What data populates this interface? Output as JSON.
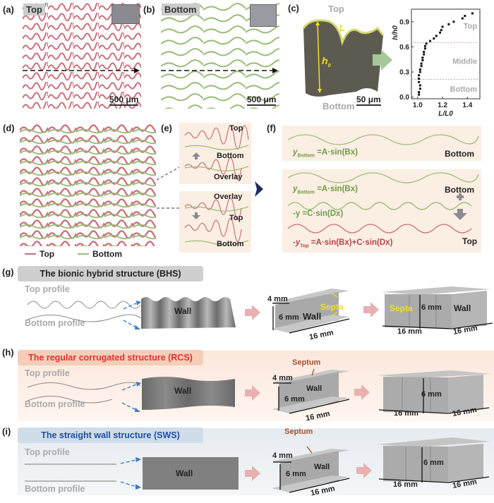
{
  "panels": {
    "a": {
      "label": "(a)",
      "tag": "Top",
      "scale": "500 μm"
    },
    "b": {
      "label": "(b)",
      "tag": "Bottom",
      "scale": "500 μm"
    },
    "c": {
      "label": "(c)",
      "top": "Top",
      "bottom": "Bottom",
      "L": "L",
      "h0": "h",
      "h0_sub": "0",
      "scale": "50 μm"
    },
    "d": {
      "label": "(d)",
      "legend": [
        {
          "name": "Top",
          "color": "#c9707a"
        },
        {
          "name": "Bottom",
          "color": "#9bbd7a"
        }
      ]
    },
    "e": {
      "label": "(e)",
      "box1": [
        "Top",
        "Bottom",
        "Overlay"
      ],
      "box2": [
        "Overlay",
        "Top",
        "Bottom"
      ]
    },
    "f": {
      "label": "(f)",
      "box1": {
        "eq_y": "y",
        "eq_sub": "Bottom",
        "eq_rhs": "=A·sin(Bx)",
        "tag": "Bottom"
      },
      "box2": {
        "eq1_y": "y",
        "eq1_sub": "Bottom",
        "eq1_rhs": "=A·sin(Bx)",
        "tag1": "Bottom",
        "eq2": "-y =C·sin(Dx)",
        "eq3_y": "-y",
        "eq3_sub": "Top",
        "eq3_rhs": "=A·sin(Bx)+C·sin(Dx)",
        "tag3": "Top"
      }
    },
    "g": {
      "label": "(g)",
      "title": "The bionic hybrid structure (BHS)",
      "top_profile": "Top profile",
      "bottom_profile": "Bottom profile",
      "wall": "Wall",
      "dim_4": "4 mm",
      "dim_6": "6 mm",
      "dim_16": "16 mm",
      "septa": "Septa"
    },
    "h": {
      "label": "(h)",
      "title": "The regular corrugated structure (RCS)",
      "top_profile": "Top profile",
      "bottom_profile": "Bottom profile",
      "wall": "Wall",
      "dim_4": "4 mm",
      "dim_6": "6 mm",
      "dim_16": "16 mm",
      "septum": "Septum"
    },
    "i": {
      "label": "(i)",
      "title": "The straight wall structure (SWS)",
      "top_profile": "Top profile",
      "bottom_profile": "Bottom profile",
      "wall": "Wall",
      "dim_4": "4 mm",
      "dim_6": "6 mm",
      "dim_16": "16 mm",
      "septum": "Septum"
    }
  },
  "colors": {
    "top_red": "#c9707a",
    "bottom_green": "#9bbd7a",
    "rcs_title": "#e53030",
    "sws_title": "#1f4fa0",
    "peach": "#fbeee3"
  },
  "chart_data": {
    "type": "scatter",
    "title": "",
    "xlabel": "L/L0",
    "ylabel": "h/h0",
    "xlim": [
      0.95,
      1.5
    ],
    "ylim": [
      -0.02,
      1.05
    ],
    "xticks": [
      "1.0",
      "1.2",
      "1.4"
    ],
    "yticks": [
      "0.0",
      "0.3",
      "0.6",
      "0.9"
    ],
    "region_lines": [
      0.21,
      0.65
    ],
    "region_labels": [
      "Top",
      "Middle",
      "Bottom"
    ],
    "x": [
      1.01,
      1.01,
      1.02,
      1.02,
      1.01,
      1.01,
      1.01,
      1.02,
      1.02,
      1.03,
      1.03,
      1.04,
      1.04,
      1.05,
      1.05,
      1.06,
      1.06,
      1.07,
      1.1,
      1.13,
      1.15,
      1.18,
      1.19,
      1.2,
      1.25,
      1.29,
      1.36,
      1.38,
      1.44
    ],
    "y": [
      0.03,
      0.06,
      0.1,
      0.14,
      0.18,
      0.22,
      0.26,
      0.3,
      0.33,
      0.37,
      0.4,
      0.44,
      0.47,
      0.51,
      0.54,
      0.58,
      0.61,
      0.64,
      0.67,
      0.7,
      0.73,
      0.77,
      0.8,
      0.84,
      0.87,
      0.9,
      0.94,
      0.97,
      1.0
    ]
  }
}
